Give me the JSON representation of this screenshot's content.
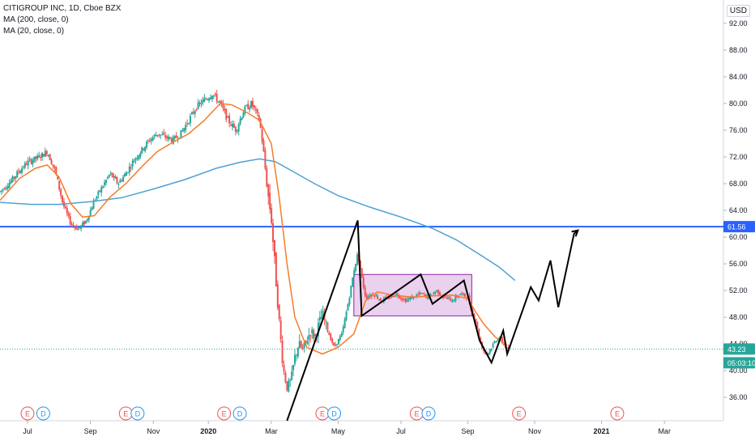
{
  "legend": {
    "symbol": "CITIGROUP INC, 1D, Cboe BZX",
    "ma200": "MA (200, close, 0)",
    "ma20": "MA (20, close, 0)"
  },
  "currency": "USD",
  "colors": {
    "up": "#26a69a",
    "down": "#ef5350",
    "ma200": "#4ea1d3",
    "ma20": "#f57c2a",
    "hline": "#2962ff",
    "box_fill": "#e1bee7",
    "box_stroke": "#8e24aa",
    "drawing": "#000000"
  },
  "chart_data": {
    "type": "candlestick",
    "ylim": [
      32.5,
      95.5
    ],
    "y_ticks": [
      "36.00",
      "40.00",
      "44.00",
      "48.00",
      "52.00",
      "56.00",
      "60.00",
      "64.00",
      "68.00",
      "72.00",
      "76.00",
      "80.00",
      "84.00",
      "88.00",
      "92.00"
    ],
    "x_ticks": [
      {
        "label": "Jul",
        "x": 2019.54,
        "bold": false
      },
      {
        "label": "Sep",
        "x": 2019.7,
        "bold": false
      },
      {
        "label": "Nov",
        "x": 2019.86,
        "bold": false
      },
      {
        "label": "2020",
        "x": 2020.0,
        "bold": true
      },
      {
        "label": "Mar",
        "x": 2020.16,
        "bold": false
      },
      {
        "label": "May",
        "x": 2020.33,
        "bold": false
      },
      {
        "label": "Jul",
        "x": 2020.49,
        "bold": false
      },
      {
        "label": "Sep",
        "x": 2020.66,
        "bold": false
      },
      {
        "label": "Nov",
        "x": 2020.83,
        "bold": false
      },
      {
        "label": "2021",
        "x": 2021.0,
        "bold": true
      },
      {
        "label": "Mar",
        "x": 2021.16,
        "bold": false
      }
    ],
    "xlim": [
      2019.47,
      2021.31
    ],
    "price_series": [
      [
        2019.47,
        66.8
      ],
      [
        2019.5,
        68.5
      ],
      [
        2019.52,
        70.0
      ],
      [
        2019.54,
        71.2
      ],
      [
        2019.57,
        72.0
      ],
      [
        2019.59,
        72.8
      ],
      [
        2019.61,
        70.0
      ],
      [
        2019.63,
        65.0
      ],
      [
        2019.65,
        62.0
      ],
      [
        2019.67,
        61.2
      ],
      [
        2019.69,
        62.5
      ],
      [
        2019.71,
        65.5
      ],
      [
        2019.73,
        67.5
      ],
      [
        2019.75,
        69.5
      ],
      [
        2019.77,
        68.0
      ],
      [
        2019.79,
        69.5
      ],
      [
        2019.81,
        71.5
      ],
      [
        2019.83,
        73.0
      ],
      [
        2019.85,
        74.5
      ],
      [
        2019.87,
        75.5
      ],
      [
        2019.89,
        75.0
      ],
      [
        2019.91,
        74.5
      ],
      [
        2019.93,
        75.5
      ],
      [
        2019.95,
        77.5
      ],
      [
        2019.97,
        79.5
      ],
      [
        2019.99,
        80.5
      ],
      [
        2020.01,
        81.5
      ],
      [
        2020.03,
        80.0
      ],
      [
        2020.05,
        77.5
      ],
      [
        2020.07,
        76.0
      ],
      [
        2020.09,
        79.0
      ],
      [
        2020.11,
        80.0
      ],
      [
        2020.13,
        77.5
      ],
      [
        2020.14,
        73.0
      ],
      [
        2020.15,
        67.0
      ],
      [
        2020.16,
        63.0
      ],
      [
        2020.17,
        55.0
      ],
      [
        2020.18,
        47.5
      ],
      [
        2020.19,
        40.5
      ],
      [
        2020.2,
        37.5
      ],
      [
        2020.21,
        38.5
      ],
      [
        2020.22,
        42.0
      ],
      [
        2020.23,
        44.0
      ],
      [
        2020.24,
        43.0
      ],
      [
        2020.26,
        46.0
      ],
      [
        2020.27,
        45.0
      ],
      [
        2020.29,
        48.5
      ],
      [
        2020.3,
        46.5
      ],
      [
        2020.31,
        45.0
      ],
      [
        2020.32,
        43.5
      ],
      [
        2020.33,
        44.5
      ],
      [
        2020.34,
        45.5
      ],
      [
        2020.35,
        48.5
      ],
      [
        2020.36,
        51.5
      ],
      [
        2020.37,
        55.0
      ],
      [
        2020.38,
        57.5
      ],
      [
        2020.39,
        54.0
      ],
      [
        2020.4,
        51.0
      ],
      [
        2020.42,
        51.5
      ],
      [
        2020.44,
        50.5
      ],
      [
        2020.46,
        51.0
      ],
      [
        2020.48,
        51.5
      ],
      [
        2020.5,
        50.5
      ],
      [
        2020.52,
        51.0
      ],
      [
        2020.54,
        51.5
      ],
      [
        2020.56,
        51.0
      ],
      [
        2020.58,
        52.0
      ],
      [
        2020.6,
        51.0
      ],
      [
        2020.62,
        50.5
      ],
      [
        2020.64,
        51.5
      ],
      [
        2020.66,
        51.0
      ],
      [
        2020.67,
        49.0
      ],
      [
        2020.68,
        47.5
      ],
      [
        2020.69,
        44.5
      ],
      [
        2020.7,
        43.0
      ],
      [
        2020.71,
        42.5
      ],
      [
        2020.72,
        43.5
      ],
      [
        2020.73,
        44.5
      ],
      [
        2020.74,
        45.0
      ],
      [
        2020.75,
        44.0
      ],
      [
        2020.76,
        43.2
      ]
    ],
    "ma200": [
      [
        2019.47,
        65.2
      ],
      [
        2019.55,
        64.9
      ],
      [
        2019.62,
        64.9
      ],
      [
        2019.7,
        65.3
      ],
      [
        2019.78,
        65.9
      ],
      [
        2019.86,
        67.2
      ],
      [
        2019.94,
        68.6
      ],
      [
        2020.02,
        70.3
      ],
      [
        2020.08,
        71.2
      ],
      [
        2020.13,
        71.7
      ],
      [
        2020.17,
        71.3
      ],
      [
        2020.21,
        70.0
      ],
      [
        2020.27,
        68.0
      ],
      [
        2020.33,
        66.2
      ],
      [
        2020.41,
        64.5
      ],
      [
        2020.49,
        63.0
      ],
      [
        2020.57,
        61.3
      ],
      [
        2020.63,
        59.6
      ],
      [
        2020.69,
        57.4
      ],
      [
        2020.74,
        55.5
      ],
      [
        2020.78,
        53.5
      ]
    ],
    "ma20": [
      [
        2019.47,
        65.5
      ],
      [
        2019.52,
        68.8
      ],
      [
        2019.56,
        70.3
      ],
      [
        2019.59,
        70.8
      ],
      [
        2019.62,
        69.0
      ],
      [
        2019.65,
        65.0
      ],
      [
        2019.68,
        63.0
      ],
      [
        2019.71,
        63.2
      ],
      [
        2019.75,
        66.0
      ],
      [
        2019.79,
        68.0
      ],
      [
        2019.83,
        70.5
      ],
      [
        2019.87,
        72.8
      ],
      [
        2019.91,
        74.2
      ],
      [
        2019.95,
        75.5
      ],
      [
        2019.99,
        77.5
      ],
      [
        2020.03,
        80.0
      ],
      [
        2020.06,
        79.8
      ],
      [
        2020.1,
        78.6
      ],
      [
        2020.13,
        77.5
      ],
      [
        2020.16,
        74.0
      ],
      [
        2020.18,
        66.0
      ],
      [
        2020.2,
        56.0
      ],
      [
        2020.22,
        48.0
      ],
      [
        2020.25,
        43.5
      ],
      [
        2020.29,
        42.5
      ],
      [
        2020.33,
        43.5
      ],
      [
        2020.37,
        45.5
      ],
      [
        2020.4,
        50.5
      ],
      [
        2020.43,
        51.8
      ],
      [
        2020.47,
        51.3
      ],
      [
        2020.52,
        51.0
      ],
      [
        2020.57,
        51.2
      ],
      [
        2020.62,
        51.3
      ],
      [
        2020.66,
        50.8
      ],
      [
        2020.68,
        48.8
      ],
      [
        2020.7,
        47.0
      ],
      [
        2020.73,
        45.0
      ],
      [
        2020.76,
        43.8
      ]
    ],
    "hline_price": 61.56,
    "current_price": 43.23,
    "box": {
      "x0": 2020.37,
      "x1": 2020.67,
      "y0": 48.2,
      "y1": 54.4
    },
    "drawing_path": [
      [
        2020.2,
        32.5
      ],
      [
        2020.38,
        62.5
      ],
      [
        2020.39,
        48.2
      ],
      [
        2020.54,
        54.4
      ],
      [
        2020.57,
        50.0
      ],
      [
        2020.65,
        53.5
      ],
      [
        2020.69,
        44.5
      ],
      [
        2020.72,
        41.2
      ],
      [
        2020.75,
        46.0
      ],
      [
        2020.76,
        42.5
      ],
      [
        2020.82,
        52.5
      ],
      [
        2020.84,
        50.5
      ],
      [
        2020.87,
        56.5
      ],
      [
        2020.89,
        49.5
      ],
      [
        2020.93,
        60.5
      ],
      [
        2020.94,
        61.0
      ]
    ],
    "earnings_marks": [
      {
        "x": 2019.54,
        "t": "E"
      },
      {
        "x": 2019.58,
        "t": "D"
      },
      {
        "x": 2019.79,
        "t": "E"
      },
      {
        "x": 2019.82,
        "t": "D"
      },
      {
        "x": 2020.04,
        "t": "E"
      },
      {
        "x": 2020.08,
        "t": "D"
      },
      {
        "x": 2020.29,
        "t": "E"
      },
      {
        "x": 2020.32,
        "t": "D"
      },
      {
        "x": 2020.53,
        "t": "E"
      },
      {
        "x": 2020.56,
        "t": "D"
      },
      {
        "x": 2020.79,
        "t": "E"
      },
      {
        "x": 2021.04,
        "t": "E"
      }
    ],
    "price_labels": [
      {
        "text": "61.56",
        "price": 61.56,
        "bg": "#2962ff"
      },
      {
        "text": "43.23",
        "price": 43.23,
        "bg": "#26a69a"
      },
      {
        "text": "05:03:10",
        "price": 41.5,
        "bg": "#26a69a"
      }
    ]
  }
}
